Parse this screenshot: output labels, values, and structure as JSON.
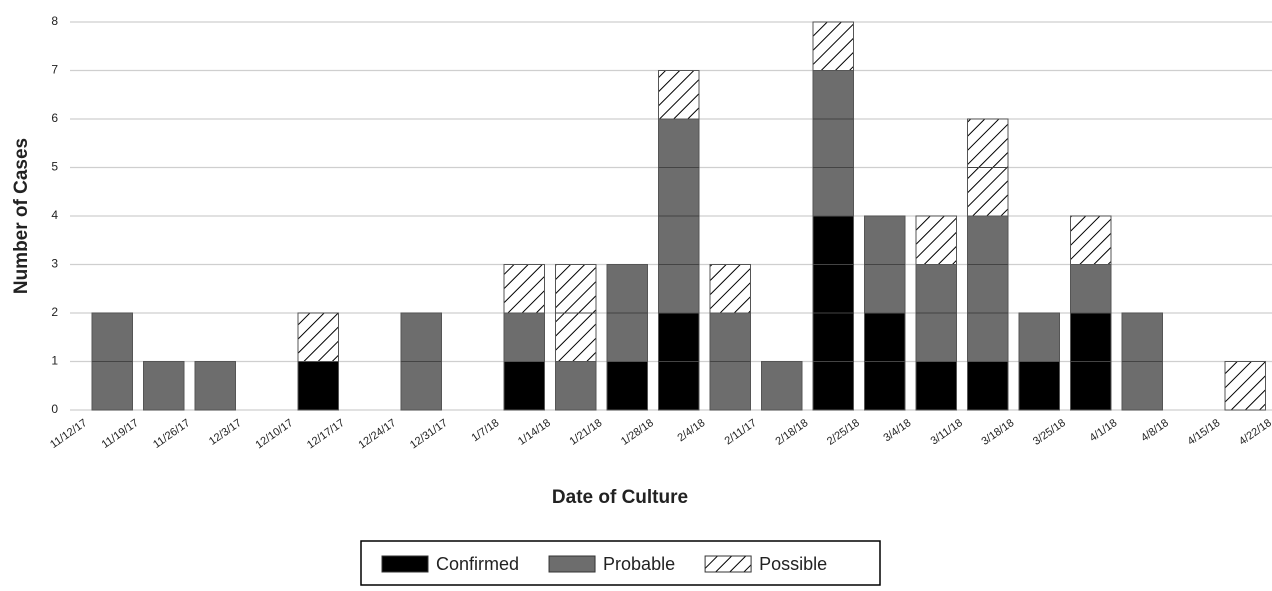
{
  "chart_data": {
    "type": "stacked_histogram",
    "xlabel": "Date of Culture",
    "ylabel": "Number of Cases",
    "bins": [
      "11/12/17",
      "11/19/17",
      "11/26/17",
      "12/3/17",
      "12/10/17",
      "12/17/17",
      "12/24/17",
      "12/31/17",
      "1/7/18",
      "1/14/18",
      "1/21/18",
      "1/28/18",
      "2/4/18",
      "2/11/17",
      "2/18/18",
      "2/25/18",
      "3/4/18",
      "3/11/18",
      "3/18/18",
      "3/25/18",
      "4/1/18",
      "4/8/18",
      "4/15/18",
      "4/22/18"
    ],
    "series": [
      {
        "name": "Confirmed",
        "color": "#000000",
        "values": [
          0,
          0,
          0,
          0,
          1,
          0,
          0,
          0,
          1,
          0,
          1,
          2,
          0,
          0,
          4,
          2,
          1,
          1,
          1,
          2,
          0,
          0,
          0
        ]
      },
      {
        "name": "Probable",
        "color": "#6d6d6d",
        "values": [
          2,
          1,
          1,
          0,
          0,
          0,
          2,
          0,
          1,
          1,
          2,
          4,
          2,
          1,
          3,
          2,
          2,
          3,
          1,
          1,
          2,
          0,
          0
        ]
      },
      {
        "name": "Possible",
        "color": "#ffffff",
        "pattern": "hatch",
        "values": [
          0,
          0,
          0,
          0,
          1,
          0,
          0,
          0,
          1,
          2,
          0,
          1,
          1,
          0,
          1,
          0,
          1,
          2,
          0,
          1,
          0,
          0,
          1
        ]
      }
    ],
    "ylim": [
      0,
      8
    ],
    "yticks": [
      0,
      1,
      2,
      3,
      4,
      5,
      6,
      7,
      8
    ],
    "grid": true,
    "legend": "bottom"
  }
}
